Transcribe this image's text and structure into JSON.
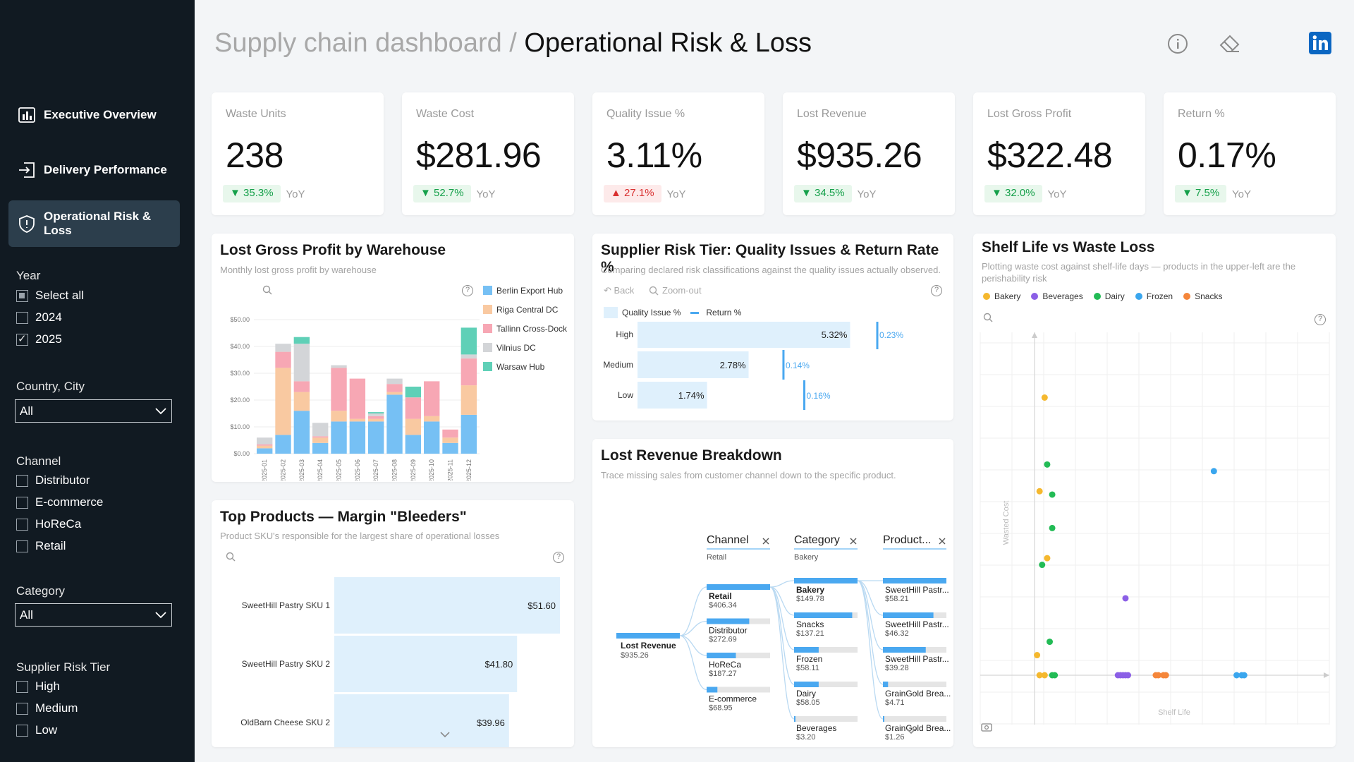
{
  "header": {
    "breadcrumb_parent": "Supply chain dashboard /",
    "breadcrumb_current": "Operational Risk & Loss",
    "icons": [
      "info-icon",
      "eraser-icon",
      "linkedin-icon"
    ]
  },
  "sidebar": {
    "nav": [
      {
        "label": "Executive Overview",
        "icon": "bar-chart-icon"
      },
      {
        "label": "Delivery Performance",
        "icon": "arrow-in-box-icon"
      },
      {
        "label": "Operational Risk & Loss",
        "icon": "shield-icon",
        "active": true
      }
    ],
    "filters": {
      "year": {
        "title": "Year",
        "options": [
          {
            "label": "Select all",
            "state": "partial"
          },
          {
            "label": "2024",
            "state": "unchecked"
          },
          {
            "label": "2025",
            "state": "checked"
          }
        ]
      },
      "country": {
        "title": "Country, City",
        "value": "All"
      },
      "channel": {
        "title": "Channel",
        "options": [
          "Distributor",
          "E-commerce",
          "HoReCa",
          "Retail"
        ]
      },
      "category": {
        "title": "Category",
        "value": "All"
      },
      "supplier": {
        "title": "Supplier Risk Tier",
        "options": [
          "High",
          "Medium",
          "Low"
        ]
      }
    }
  },
  "kpis": [
    {
      "label": "Waste Units",
      "value": "238",
      "change": "▼ 35.3%",
      "trend": "good",
      "yoy": "YoY"
    },
    {
      "label": "Waste Cost",
      "value": "$281.96",
      "change": "▼ 52.7%",
      "trend": "good",
      "yoy": "YoY"
    },
    {
      "label": "Quality Issue %",
      "value": "3.11%",
      "change": "▲ 27.1%",
      "trend": "bad",
      "yoy": "YoY"
    },
    {
      "label": "Lost Revenue",
      "value": "$935.26",
      "change": "▼ 34.5%",
      "trend": "good",
      "yoy": "YoY"
    },
    {
      "label": "Lost Gross Profit",
      "value": "$322.48",
      "change": "▼ 32.0%",
      "trend": "good",
      "yoy": "YoY"
    },
    {
      "label": "Return %",
      "value": "0.17%",
      "change": "▼ 7.5%",
      "trend": "good",
      "yoy": "YoY"
    }
  ],
  "panels": {
    "warehouse": {
      "title": "Lost Gross Profit by Warehouse",
      "subtitle": "Monthly lost gross profit by warehouse"
    },
    "supplier": {
      "title": "Supplier Risk Tier: Quality Issues & Return Rate %",
      "subtitle": "Comparing declared risk classifications against the quality issues actually observed.",
      "back": "Back",
      "zoom_out": "Zoom-out"
    },
    "shelf": {
      "title": "Shelf Life vs Waste Loss",
      "subtitle": "Plotting waste cost against shelf-life days — products in the upper-left are the perishability risk"
    },
    "bleeders": {
      "title": "Top Products — Margin \"Bleeders\"",
      "subtitle": "Product SKU's responsible for the largest share of operational losses"
    },
    "breakdown": {
      "title": "Lost Revenue Breakdown",
      "subtitle": "Trace missing sales from customer channel down to the specific product."
    }
  },
  "chart_data": [
    {
      "type": "bar",
      "stacked": true,
      "title": "Lost Gross Profit by Warehouse",
      "categories": [
        "2025-01",
        "2025-02",
        "2025-03",
        "2025-04",
        "2025-05",
        "2025-06",
        "2025-07",
        "2025-08",
        "2025-09",
        "2025-10",
        "2025-11",
        "2025-12"
      ],
      "ylim": [
        0,
        50
      ],
      "yticks": [
        "$0.00",
        "$10.00",
        "$20.00",
        "$30.00",
        "$40.00",
        "$50.00"
      ],
      "legend_position": "right",
      "series": [
        {
          "name": "Berlin Export Hub",
          "color": "#76c0f4",
          "values": [
            2,
            7,
            16,
            4,
            12,
            12,
            12,
            22,
            7,
            12,
            4,
            14.5
          ]
        },
        {
          "name": "Riga Central DC",
          "color": "#f9c9a1",
          "values": [
            1,
            25,
            7,
            2,
            4,
            1,
            1,
            1,
            6,
            2,
            2,
            11
          ]
        },
        {
          "name": "Tallinn Cross-Dock",
          "color": "#f7a7b4",
          "values": [
            0.5,
            6,
            4,
            0.5,
            16,
            15,
            1,
            3,
            8,
            13,
            3,
            10
          ]
        },
        {
          "name": "Vilnius DC",
          "color": "#d3d5d8",
          "values": [
            2.5,
            3,
            14,
            5,
            1,
            0,
            1,
            2,
            0,
            0,
            0,
            1.5
          ]
        },
        {
          "name": "Warsaw Hub",
          "color": "#5fd0b7",
          "values": [
            0,
            0,
            2.5,
            0,
            0,
            0,
            0.5,
            0,
            4,
            0,
            0,
            10
          ]
        }
      ]
    },
    {
      "type": "bar",
      "orientation": "horizontal",
      "title": "Supplier Risk Tier: Quality Issues & Return Rate %",
      "categories": [
        "High",
        "Medium",
        "Low"
      ],
      "series": [
        {
          "name": "Quality Issue %",
          "color": "#dff0fc",
          "values": [
            5.32,
            2.78,
            1.74
          ],
          "labels": [
            "5.32%",
            "2.78%",
            "1.74%"
          ]
        },
        {
          "name": "Return %",
          "color": "#4aa8f0",
          "values": [
            0.23,
            0.14,
            0.16
          ],
          "labels": [
            "0.23%",
            "0.14%",
            "0.16%"
          ]
        }
      ],
      "xlim": [
        0,
        6
      ]
    },
    {
      "type": "scatter",
      "title": "Shelf Life vs Waste Loss",
      "xlabel": "Shelf Life",
      "ylabel": "Wasted Cost",
      "xlim": [
        0,
        100
      ],
      "ylim": [
        0,
        100
      ],
      "legend_position": "top",
      "series": [
        {
          "name": "Bakery",
          "color": "#f5b82e",
          "points": [
            [
              4,
              83
            ],
            [
              2,
              55
            ],
            [
              5,
              35
            ],
            [
              1,
              6
            ],
            [
              2,
              0
            ],
            [
              4,
              0
            ]
          ]
        },
        {
          "name": "Beverages",
          "color": "#8b5fe6",
          "points": [
            [
              36,
              23
            ],
            [
              33,
              0
            ],
            [
              34,
              0
            ],
            [
              35,
              0
            ],
            [
              36,
              0
            ],
            [
              37,
              0
            ]
          ]
        },
        {
          "name": "Dairy",
          "color": "#22bb55",
          "points": [
            [
              5,
              63
            ],
            [
              7,
              54
            ],
            [
              7,
              44
            ],
            [
              3,
              33
            ],
            [
              6,
              10
            ],
            [
              7,
              0
            ],
            [
              8,
              0
            ]
          ]
        },
        {
          "name": "Frozen",
          "color": "#3aa6ee",
          "points": [
            [
              71,
              61
            ],
            [
              80,
              0
            ],
            [
              82,
              0
            ],
            [
              83,
              0
            ]
          ]
        },
        {
          "name": "Snacks",
          "color": "#f5863a",
          "points": [
            [
              48,
              0
            ],
            [
              49,
              0
            ],
            [
              51,
              0
            ],
            [
              52,
              0
            ]
          ]
        }
      ]
    },
    {
      "type": "bar",
      "orientation": "horizontal",
      "title": "Top Products — Margin \"Bleeders\"",
      "categories": [
        "SweetHill Pastry SKU 1",
        "SweetHill Pastry SKU 2",
        "OldBarn Cheese SKU 2"
      ],
      "values": [
        51.6,
        41.8,
        39.96
      ],
      "labels": [
        "$51.60",
        "$41.80",
        "$39.96"
      ],
      "xlim": [
        0,
        51.6
      ]
    }
  ],
  "breakdown": {
    "root": {
      "label": "Lost Revenue",
      "value": "$935.26"
    },
    "levels": [
      {
        "header": "Channel",
        "selected": "Retail",
        "items": [
          {
            "label": "Retail",
            "value": "$406.34",
            "amount": 406.34,
            "bold": true
          },
          {
            "label": "Distributor",
            "value": "$272.69",
            "amount": 272.69
          },
          {
            "label": "HoReCa",
            "value": "$187.27",
            "amount": 187.27
          },
          {
            "label": "E-commerce",
            "value": "$68.95",
            "amount": 68.95
          }
        ]
      },
      {
        "header": "Category",
        "selected": "Bakery",
        "items": [
          {
            "label": "Bakery",
            "value": "$149.78",
            "amount": 149.78,
            "bold": true
          },
          {
            "label": "Snacks",
            "value": "$137.21",
            "amount": 137.21
          },
          {
            "label": "Frozen",
            "value": "$58.11",
            "amount": 58.11
          },
          {
            "label": "Dairy",
            "value": "$58.05",
            "amount": 58.05
          },
          {
            "label": "Beverages",
            "value": "$3.20",
            "amount": 3.2
          }
        ]
      },
      {
        "header": "Product...",
        "selected": "",
        "items": [
          {
            "label": "SweetHill Pastr...",
            "value": "$58.21",
            "amount": 58.21
          },
          {
            "label": "SweetHill Pastr...",
            "value": "$46.32",
            "amount": 46.32
          },
          {
            "label": "SweetHill Pastr...",
            "value": "$39.28",
            "amount": 39.28
          },
          {
            "label": "GrainGold Brea...",
            "value": "$4.71",
            "amount": 4.71
          },
          {
            "label": "GrainGold Brea...",
            "value": "$1.26",
            "amount": 1.26
          }
        ]
      }
    ]
  }
}
